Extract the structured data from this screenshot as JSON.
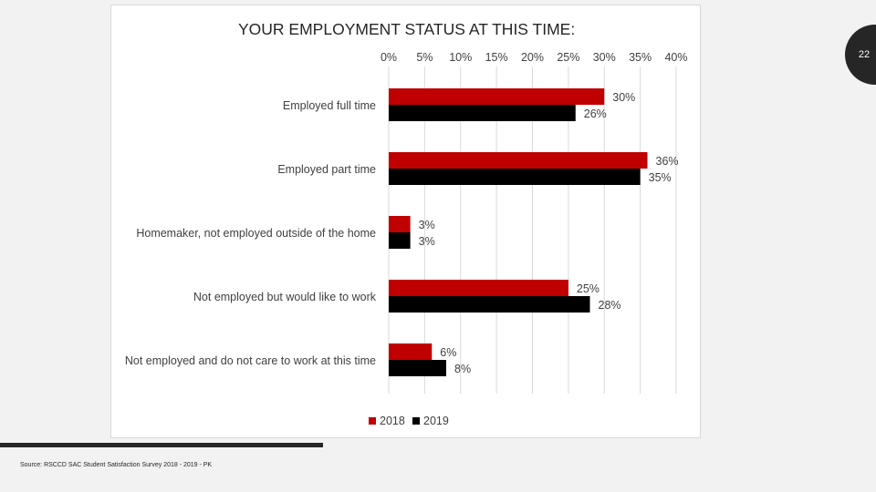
{
  "slide": {
    "page_number": "22",
    "source_note": "Source: RSCCD SAC Student Satisfaction Survey 2018 - 2019 - PK"
  },
  "colors": {
    "series_2018": "#c00000",
    "series_2019": "#000000",
    "grid": "#d9d9d9",
    "text": "#404040"
  },
  "chart_data": {
    "type": "bar",
    "orientation": "horizontal",
    "title": "YOUR EMPLOYMENT STATUS AT THIS TIME:",
    "categories": [
      "Employed full time",
      "Employed part time",
      "Homemaker, not employed outside of the home",
      "Not employed but would like to work",
      "Not employed and do not care to work at this time"
    ],
    "series": [
      {
        "name": "2018",
        "values": [
          30,
          36,
          3,
          25,
          6
        ],
        "labels": [
          "30%",
          "36%",
          "3%",
          "25%",
          "6%"
        ]
      },
      {
        "name": "2019",
        "values": [
          26,
          35,
          3,
          28,
          8
        ],
        "labels": [
          "26%",
          "35%",
          "3%",
          "28%",
          "8%"
        ]
      }
    ],
    "xlim": [
      0,
      40
    ],
    "xticks": [
      0,
      5,
      10,
      15,
      20,
      25,
      30,
      35,
      40
    ],
    "xtick_labels": [
      "0%",
      "5%",
      "10%",
      "15%",
      "20%",
      "25%",
      "30%",
      "35%",
      "40%"
    ],
    "axis_position": "top",
    "grid": true,
    "legend": "bottom"
  }
}
